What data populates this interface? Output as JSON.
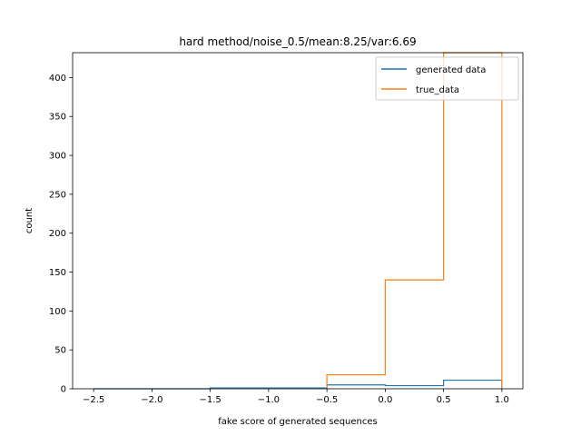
{
  "chart_data": {
    "type": "histogram-step",
    "title": "hard method/noise_0.5/mean:8.25/var:6.69",
    "xlabel": "fake score of generated sequences",
    "ylabel": "count",
    "xlim": [
      -2.68,
      1.18
    ],
    "ylim": [
      0,
      432
    ],
    "xticks": [
      -2.5,
      -2.0,
      -1.5,
      -1.0,
      -0.5,
      0.0,
      0.5,
      1.0
    ],
    "xtick_labels": [
      "−2.5",
      "−2.0",
      "−1.5",
      "−1.0",
      "−0.5",
      "0.0",
      "0.5",
      "1.0"
    ],
    "yticks": [
      0,
      50,
      100,
      150,
      200,
      250,
      300,
      350,
      400
    ],
    "ytick_labels": [
      "0",
      "50",
      "100",
      "150",
      "200",
      "250",
      "300",
      "350",
      "400"
    ],
    "legend_position": "top-right",
    "series": [
      {
        "name": "generated data",
        "color": "#1f77b4",
        "bin_edges": [
          -2.5,
          -2.0,
          -1.5,
          -1.0,
          -0.5,
          0.0,
          0.5,
          1.0
        ],
        "counts": [
          0,
          0,
          1,
          1,
          5,
          4,
          11
        ]
      },
      {
        "name": "true_data",
        "color": "#ff7f0e",
        "bin_edges": [
          -0.5,
          0.0,
          0.5,
          1.0
        ],
        "counts": [
          18,
          140,
          432
        ]
      }
    ]
  }
}
